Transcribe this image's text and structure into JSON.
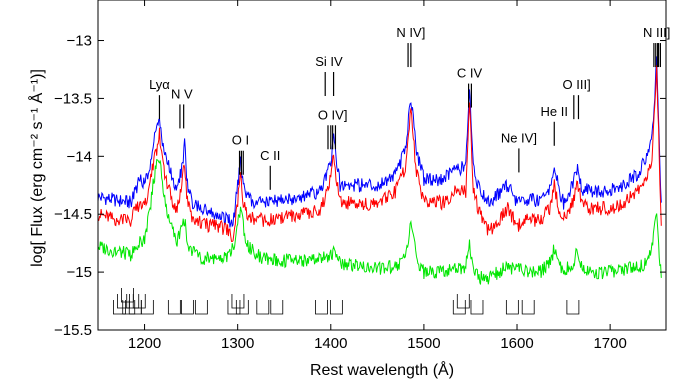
{
  "chart_data": {
    "type": "line",
    "title": "",
    "xlabel": "Rest wavelength (Å)",
    "ylabel": "log[ Flux (erg cm⁻² s⁻¹ Å⁻¹)]",
    "xlim": [
      1150,
      1760
    ],
    "ylim": [
      -15.5,
      -12.65
    ],
    "x_ticks": [
      1200,
      1300,
      1400,
      1500,
      1600,
      1700
    ],
    "y_ticks": [
      -15.5,
      -15,
      -14.5,
      -14,
      -13.5,
      -13
    ],
    "x_tick_labels": [
      "1200",
      "1300",
      "1400",
      "1500",
      "1600",
      "1700"
    ],
    "y_tick_labels": [
      "−15.5",
      "−15",
      "−14.5",
      "−14",
      "−13.5",
      "−13"
    ],
    "grid": false,
    "series_colors": [
      "#0000ff",
      "#ff0000",
      "#00e600"
    ],
    "series": [
      {
        "x": [
          1150,
          1170,
          1185,
          1195,
          1200,
          1205,
          1210,
          1213,
          1216,
          1220,
          1225,
          1230,
          1235,
          1240,
          1243,
          1246,
          1250,
          1260,
          1270,
          1280,
          1290,
          1295,
          1300,
          1303,
          1306,
          1310,
          1320,
          1335,
          1350,
          1370,
          1390,
          1400,
          1403,
          1410,
          1430,
          1450,
          1470,
          1480,
          1486,
          1492,
          1500,
          1520,
          1535,
          1545,
          1549,
          1553,
          1560,
          1570,
          1590,
          1600,
          1610,
          1625,
          1635,
          1640,
          1645,
          1650,
          1660,
          1665,
          1670,
          1680,
          1700,
          1715,
          1730,
          1740,
          1745,
          1748,
          1750,
          1752,
          1755
        ],
        "y": [
          -14.35,
          -14.38,
          -14.4,
          -14.2,
          -14.25,
          -14.1,
          -13.88,
          -13.75,
          -13.7,
          -13.9,
          -14.05,
          -14.2,
          -14.3,
          -14.1,
          -13.9,
          -14.25,
          -14.38,
          -14.45,
          -14.48,
          -14.5,
          -14.55,
          -14.6,
          -14.25,
          -14.05,
          -14.25,
          -14.35,
          -14.4,
          -14.38,
          -14.38,
          -14.35,
          -14.3,
          -14.05,
          -13.85,
          -14.25,
          -14.25,
          -14.25,
          -14.15,
          -13.95,
          -13.5,
          -13.95,
          -14.2,
          -14.2,
          -14.1,
          -14.1,
          -13.45,
          -14.1,
          -14.3,
          -14.4,
          -14.25,
          -14.4,
          -14.38,
          -14.38,
          -14.3,
          -14.1,
          -14.28,
          -14.4,
          -14.25,
          -14.1,
          -14.28,
          -14.3,
          -14.3,
          -14.25,
          -14.15,
          -14.0,
          -13.85,
          -13.5,
          -13.1,
          -13.7,
          -14.4
        ]
      },
      {
        "x": [
          1150,
          1170,
          1185,
          1195,
          1200,
          1205,
          1210,
          1213,
          1216,
          1220,
          1225,
          1230,
          1235,
          1240,
          1243,
          1246,
          1250,
          1260,
          1270,
          1280,
          1290,
          1295,
          1300,
          1303,
          1306,
          1310,
          1320,
          1335,
          1350,
          1370,
          1390,
          1400,
          1403,
          1410,
          1430,
          1450,
          1470,
          1480,
          1486,
          1492,
          1500,
          1520,
          1535,
          1545,
          1549,
          1553,
          1560,
          1570,
          1590,
          1600,
          1610,
          1625,
          1635,
          1640,
          1645,
          1650,
          1660,
          1665,
          1670,
          1680,
          1700,
          1715,
          1730,
          1740,
          1745,
          1748,
          1750,
          1752,
          1755
        ],
        "y": [
          -14.5,
          -14.55,
          -14.55,
          -14.4,
          -14.45,
          -14.25,
          -14.05,
          -13.95,
          -13.8,
          -14.1,
          -14.25,
          -14.4,
          -14.45,
          -14.25,
          -14.05,
          -14.4,
          -14.52,
          -14.58,
          -14.6,
          -14.6,
          -14.65,
          -14.7,
          -14.4,
          -14.15,
          -14.4,
          -14.5,
          -14.55,
          -14.55,
          -14.52,
          -14.5,
          -14.45,
          -14.2,
          -14.0,
          -14.4,
          -14.4,
          -14.42,
          -14.3,
          -14.1,
          -13.6,
          -14.15,
          -14.38,
          -14.4,
          -14.3,
          -14.3,
          -13.55,
          -14.3,
          -14.5,
          -14.65,
          -14.45,
          -14.6,
          -14.55,
          -14.55,
          -14.45,
          -14.25,
          -14.45,
          -14.55,
          -14.4,
          -14.22,
          -14.42,
          -14.45,
          -14.45,
          -14.4,
          -14.3,
          -14.15,
          -14.0,
          -13.6,
          -13.2,
          -13.8,
          -14.6
        ]
      },
      {
        "x": [
          1150,
          1170,
          1185,
          1195,
          1200,
          1205,
          1210,
          1213,
          1216,
          1220,
          1225,
          1230,
          1235,
          1240,
          1243,
          1246,
          1250,
          1260,
          1270,
          1280,
          1290,
          1295,
          1300,
          1303,
          1306,
          1310,
          1320,
          1335,
          1350,
          1370,
          1390,
          1400,
          1403,
          1410,
          1430,
          1450,
          1470,
          1480,
          1486,
          1492,
          1500,
          1520,
          1535,
          1545,
          1549,
          1553,
          1560,
          1570,
          1590,
          1600,
          1610,
          1625,
          1635,
          1640,
          1645,
          1650,
          1660,
          1665,
          1670,
          1680,
          1700,
          1715,
          1730,
          1740,
          1745,
          1748,
          1750,
          1752,
          1755
        ],
        "y": [
          -14.78,
          -14.82,
          -14.85,
          -14.75,
          -14.7,
          -14.5,
          -14.2,
          -14.05,
          -14.0,
          -14.3,
          -14.5,
          -14.65,
          -14.72,
          -14.6,
          -14.55,
          -14.75,
          -14.82,
          -14.88,
          -14.88,
          -14.88,
          -14.85,
          -14.8,
          -14.6,
          -14.45,
          -14.6,
          -14.75,
          -14.85,
          -14.9,
          -14.9,
          -14.9,
          -14.88,
          -14.85,
          -14.82,
          -14.92,
          -14.95,
          -14.97,
          -14.95,
          -14.88,
          -14.55,
          -14.9,
          -15.0,
          -15.0,
          -14.98,
          -14.95,
          -14.75,
          -15.0,
          -15.05,
          -15.05,
          -14.95,
          -14.98,
          -15.0,
          -15.0,
          -14.92,
          -14.8,
          -14.95,
          -15.0,
          -14.92,
          -14.82,
          -14.95,
          -15.0,
          -15.0,
          -14.98,
          -14.95,
          -14.92,
          -14.8,
          -14.6,
          -14.55,
          -14.75,
          -15.05
        ]
      }
    ],
    "annotations": [
      {
        "label": "Lyα",
        "x": 1216,
        "y": -13.42,
        "marks": [
          1216
        ]
      },
      {
        "label": "N V",
        "x": 1240,
        "y": -13.5,
        "marks": [
          1238,
          1242
        ]
      },
      {
        "label": "O I",
        "x": 1303,
        "y": -13.9,
        "marks": [
          1302,
          1304,
          1306
        ]
      },
      {
        "label": "C II",
        "x": 1335,
        "y": -14.03,
        "marks": [
          1335
        ]
      },
      {
        "label": "Si IV",
        "x": 1398,
        "y": -13.22,
        "marks": [
          1394,
          1403
        ]
      },
      {
        "label": "O IV]",
        "x": 1402,
        "y": -13.68,
        "marks": [
          1397,
          1400,
          1402,
          1405
        ]
      },
      {
        "label": "N IV]",
        "x": 1486,
        "y": -12.97,
        "marks": [
          1483,
          1486
        ]
      },
      {
        "label": "C IV",
        "x": 1549,
        "y": -13.32,
        "marks": [
          1548,
          1551
        ]
      },
      {
        "label": "Ne IV]",
        "x": 1602,
        "y": -13.88,
        "marks": [
          1602
        ]
      },
      {
        "label": "He II",
        "x": 1640,
        "y": -13.65,
        "marks": [
          1640
        ]
      },
      {
        "label": "O III]",
        "x": 1664,
        "y": -13.42,
        "marks": [
          1661,
          1666
        ]
      },
      {
        "label": "N III]",
        "x": 1750,
        "y": -12.97,
        "marks": [
          1747,
          1749,
          1751,
          1752,
          1754
        ]
      }
    ],
    "absorption_brackets": [
      {
        "x": 1173,
        "depth": 3
      },
      {
        "x": 1183,
        "depth": 2
      },
      {
        "x": 1190,
        "depth": 2
      },
      {
        "x": 1203,
        "depth": 1
      },
      {
        "x": 1232,
        "depth": 1
      },
      {
        "x": 1246,
        "depth": 1
      },
      {
        "x": 1261,
        "depth": 1
      },
      {
        "x": 1296,
        "depth": 2
      },
      {
        "x": 1305,
        "depth": 1
      },
      {
        "x": 1327,
        "depth": 1
      },
      {
        "x": 1342,
        "depth": 1
      },
      {
        "x": 1390,
        "depth": 1
      },
      {
        "x": 1406,
        "depth": 1
      },
      {
        "x": 1538,
        "depth": 2
      },
      {
        "x": 1557,
        "depth": 1
      },
      {
        "x": 1595,
        "depth": 1
      },
      {
        "x": 1612,
        "depth": 1
      },
      {
        "x": 1660,
        "depth": 1
      }
    ]
  }
}
